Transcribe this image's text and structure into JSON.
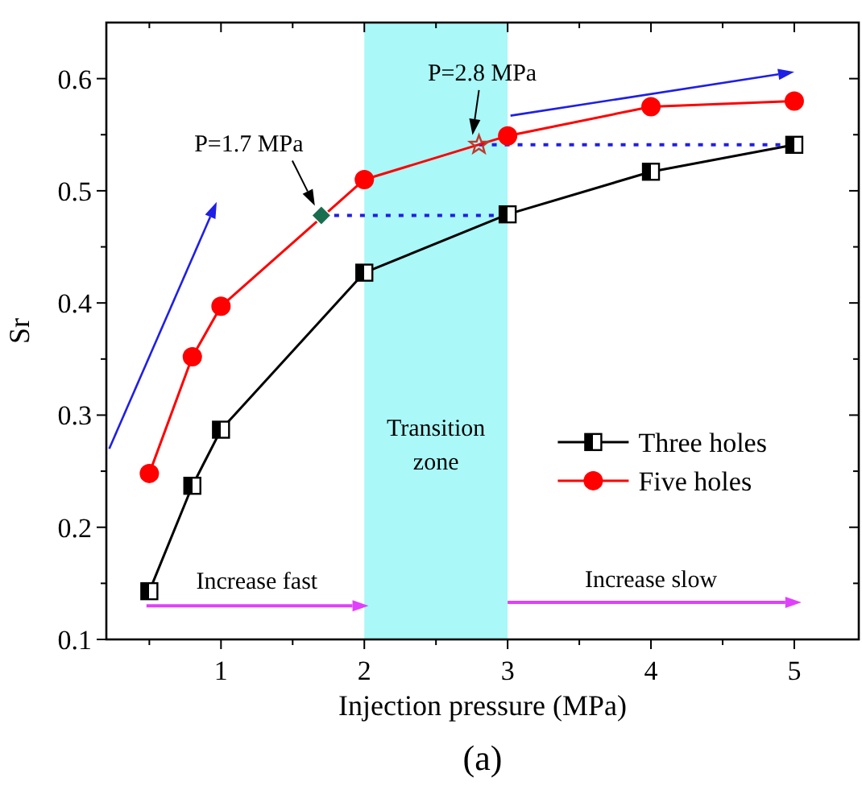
{
  "chart_data": {
    "type": "line",
    "xlabel": "Injection pressure (MPa)",
    "ylabel": "Sr",
    "xlim": [
      0.2,
      5.45
    ],
    "ylim": [
      0.1,
      0.65
    ],
    "xticks": [
      {
        "value": 0.5,
        "label": null
      },
      1,
      {
        "value": 1.5,
        "label": null
      },
      2,
      {
        "value": 2.5,
        "label": null
      },
      3,
      {
        "value": 3.5,
        "label": null
      },
      4,
      {
        "value": 4.5,
        "label": null
      },
      5
    ],
    "yticks": [
      0.1,
      {
        "value": 0.15,
        "label": null
      },
      0.2,
      {
        "value": 0.25,
        "label": null
      },
      0.3,
      {
        "value": 0.35,
        "label": null
      },
      0.4,
      {
        "value": 0.45,
        "label": null
      },
      0.5,
      {
        "value": 0.55,
        "label": null
      },
      0.6
    ],
    "series": [
      {
        "type": "line",
        "line_style": "dotted",
        "color": "#1f1fe6",
        "x": [
          1.7,
          3
        ],
        "values": [
          0.478,
          0.478
        ],
        "marker": "none"
      },
      {
        "type": "line",
        "line_style": "dotted",
        "color": "#1f1fe6",
        "x": [
          2.8,
          5
        ],
        "values": [
          0.541,
          0.541
        ],
        "marker": "none"
      },
      {
        "name": "Three holes",
        "color": "#000000",
        "marker": "square",
        "x": [
          0.5,
          0.8,
          1,
          2,
          3,
          4,
          5
        ],
        "values": [
          0.143,
          0.237,
          0.287,
          0.427,
          0.479,
          0.517,
          0.541
        ]
      },
      {
        "name": "Five holes",
        "color": "#ff0000",
        "marker": "circle",
        "x": [
          0.5,
          0.8,
          1,
          2,
          3,
          4,
          5
        ],
        "values": [
          0.248,
          0.352,
          0.397,
          0.51,
          0.549,
          0.575,
          0.58
        ]
      },
      {
        "type": "scatter",
        "color": "#1a6e50",
        "marker": "diamond",
        "x": [
          1.7
        ],
        "values": [
          0.478
        ]
      },
      {
        "type": "scatter",
        "color": "#c0392b",
        "marker": "star",
        "x": [
          2.8
        ],
        "values": [
          0.541
        ]
      }
    ],
    "bands": [
      {
        "axis": "x",
        "from": 2,
        "to": 3,
        "label": "Transition zone",
        "color": "#aaf8f8"
      }
    ],
    "annotations": [
      {
        "text": "P=1.7 MPa",
        "x": 1.7,
        "y": 0.478
      },
      {
        "text": "P=2.8 MPa",
        "x": 2.8,
        "y": 0.541
      },
      "Increase fast",
      "Increase slow",
      "(a)"
    ],
    "legend": "right",
    "grid": false
  }
}
